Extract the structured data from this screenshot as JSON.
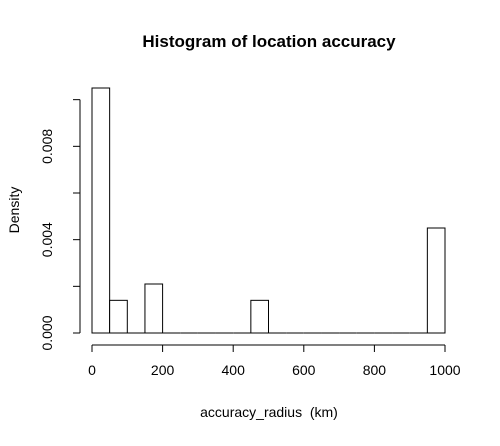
{
  "chart_data": {
    "type": "bar",
    "title": "Histogram of location accuracy",
    "xlabel": "accuracy_radius  (km)",
    "ylabel": "Density",
    "xlim": [
      0,
      1000
    ],
    "ylim": [
      0,
      0.0105
    ],
    "bin_width": 50,
    "bins": [
      {
        "x0": 0,
        "x1": 50,
        "density": 0.0105
      },
      {
        "x0": 50,
        "x1": 100,
        "density": 0.0014
      },
      {
        "x0": 150,
        "x1": 200,
        "density": 0.0021
      },
      {
        "x0": 450,
        "x1": 500,
        "density": 0.0014
      },
      {
        "x0": 950,
        "x1": 1000,
        "density": 0.0045
      }
    ],
    "x_ticks": [
      {
        "value": 0,
        "label": "0"
      },
      {
        "value": 200,
        "label": "200"
      },
      {
        "value": 400,
        "label": "400"
      },
      {
        "value": 600,
        "label": "600"
      },
      {
        "value": 800,
        "label": "800"
      },
      {
        "value": 1000,
        "label": "1000"
      }
    ],
    "y_ticks": [
      {
        "value": 0,
        "label": "0.000"
      },
      {
        "value": 0.002,
        "label": ""
      },
      {
        "value": 0.004,
        "label": "0.004"
      },
      {
        "value": 0.006,
        "label": ""
      },
      {
        "value": 0.008,
        "label": "0.008"
      },
      {
        "value": 0.01,
        "label": ""
      }
    ],
    "colors": {
      "bar_fill": "#ffffff",
      "bar_stroke": "#000000",
      "axis": "#000000",
      "text": "#000000"
    }
  }
}
